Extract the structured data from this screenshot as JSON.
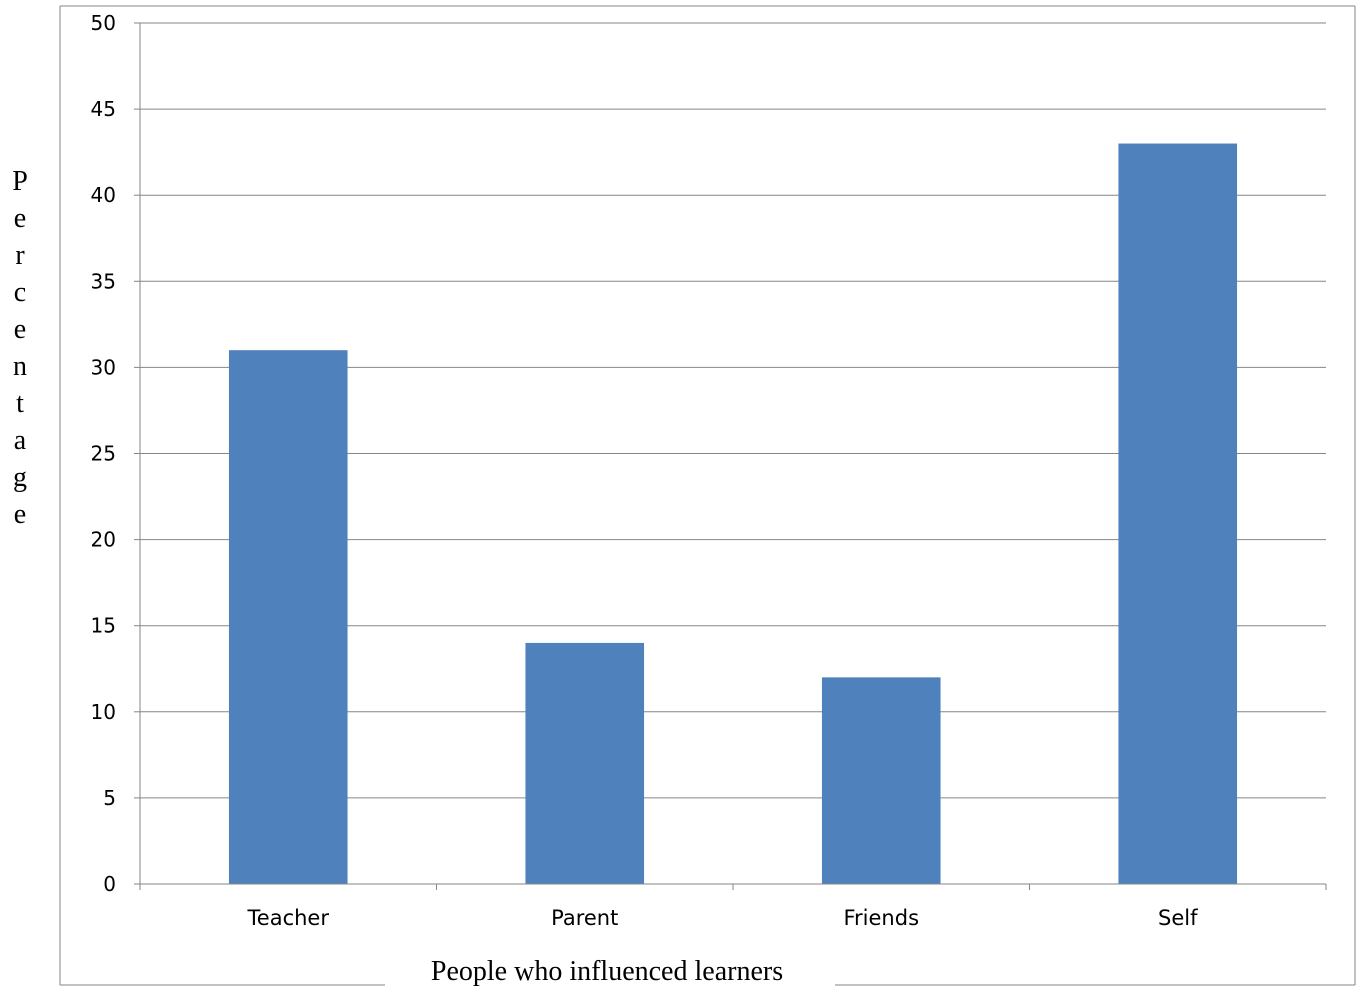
{
  "chart_data": {
    "type": "bar",
    "categories": [
      "Teacher",
      "Parent",
      "Friends",
      "Self"
    ],
    "values": [
      31,
      14,
      12,
      43
    ],
    "xlabel": "People who influenced learners",
    "ylabel": "Percentage",
    "ylim": [
      0,
      50
    ],
    "yticks": [
      0,
      5,
      10,
      15,
      20,
      25,
      30,
      35,
      40,
      45,
      50
    ],
    "grid": true,
    "legend": "none",
    "colors": {
      "bar": "#4F81BD",
      "grid": "#868686",
      "axis": "#868686",
      "frame": "#868686"
    }
  }
}
